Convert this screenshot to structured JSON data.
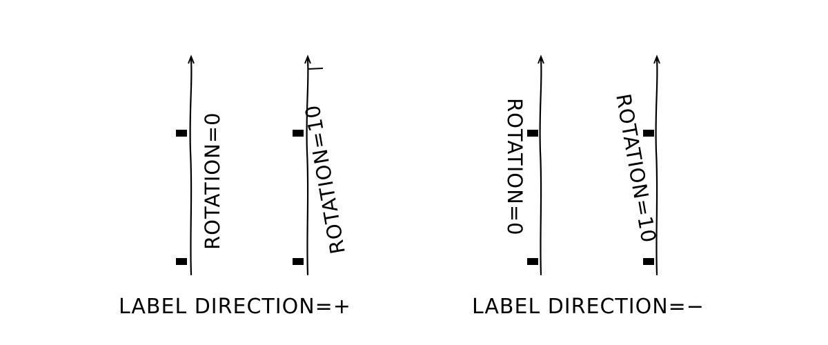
{
  "groups": [
    {
      "caption": "LABEL DIRECTION=+",
      "axes": [
        {
          "label": "ROTATION=0"
        },
        {
          "label": "ROTATION=10"
        }
      ]
    },
    {
      "caption": "LABEL DIRECTION=−",
      "axes": [
        {
          "label": "ROTATION=0"
        },
        {
          "label": "ROTATION=10"
        }
      ]
    }
  ],
  "colors": {
    "ink": "#000000",
    "background": "#ffffff"
  }
}
